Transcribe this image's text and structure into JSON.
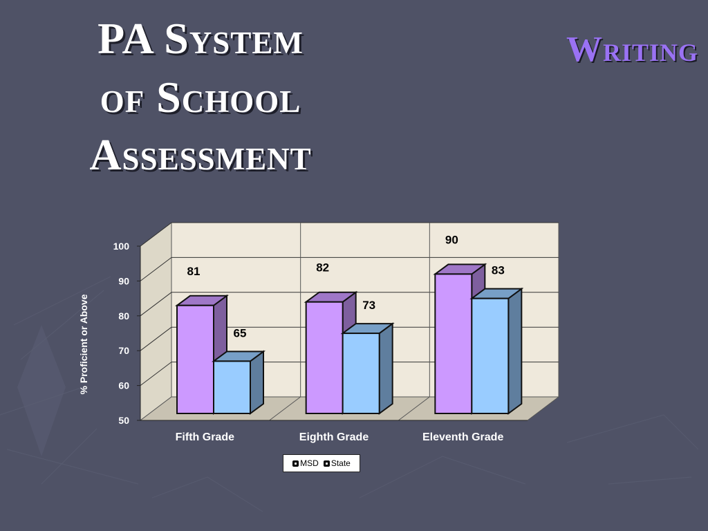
{
  "slide": {
    "title_lines": [
      "PA System",
      "of School",
      "Assessment"
    ],
    "topic": "Writing",
    "background_color": "#4f5266"
  },
  "chart_data": {
    "type": "bar",
    "style": "3d-clustered",
    "categories": [
      "Fifth Grade",
      "Eighth Grade",
      "Eleventh Grade"
    ],
    "series": [
      {
        "name": "MSD",
        "values": [
          81,
          82,
          90
        ],
        "color": "#cc99ff"
      },
      {
        "name": "State",
        "values": [
          65,
          73,
          83
        ],
        "color": "#99ccff"
      }
    ],
    "ylabel": "% Proficient or Above",
    "ylim": [
      50,
      100
    ],
    "yticks": [
      50,
      60,
      70,
      80,
      90,
      100
    ],
    "grid": true,
    "legend_position": "bottom",
    "data_labels": true
  }
}
